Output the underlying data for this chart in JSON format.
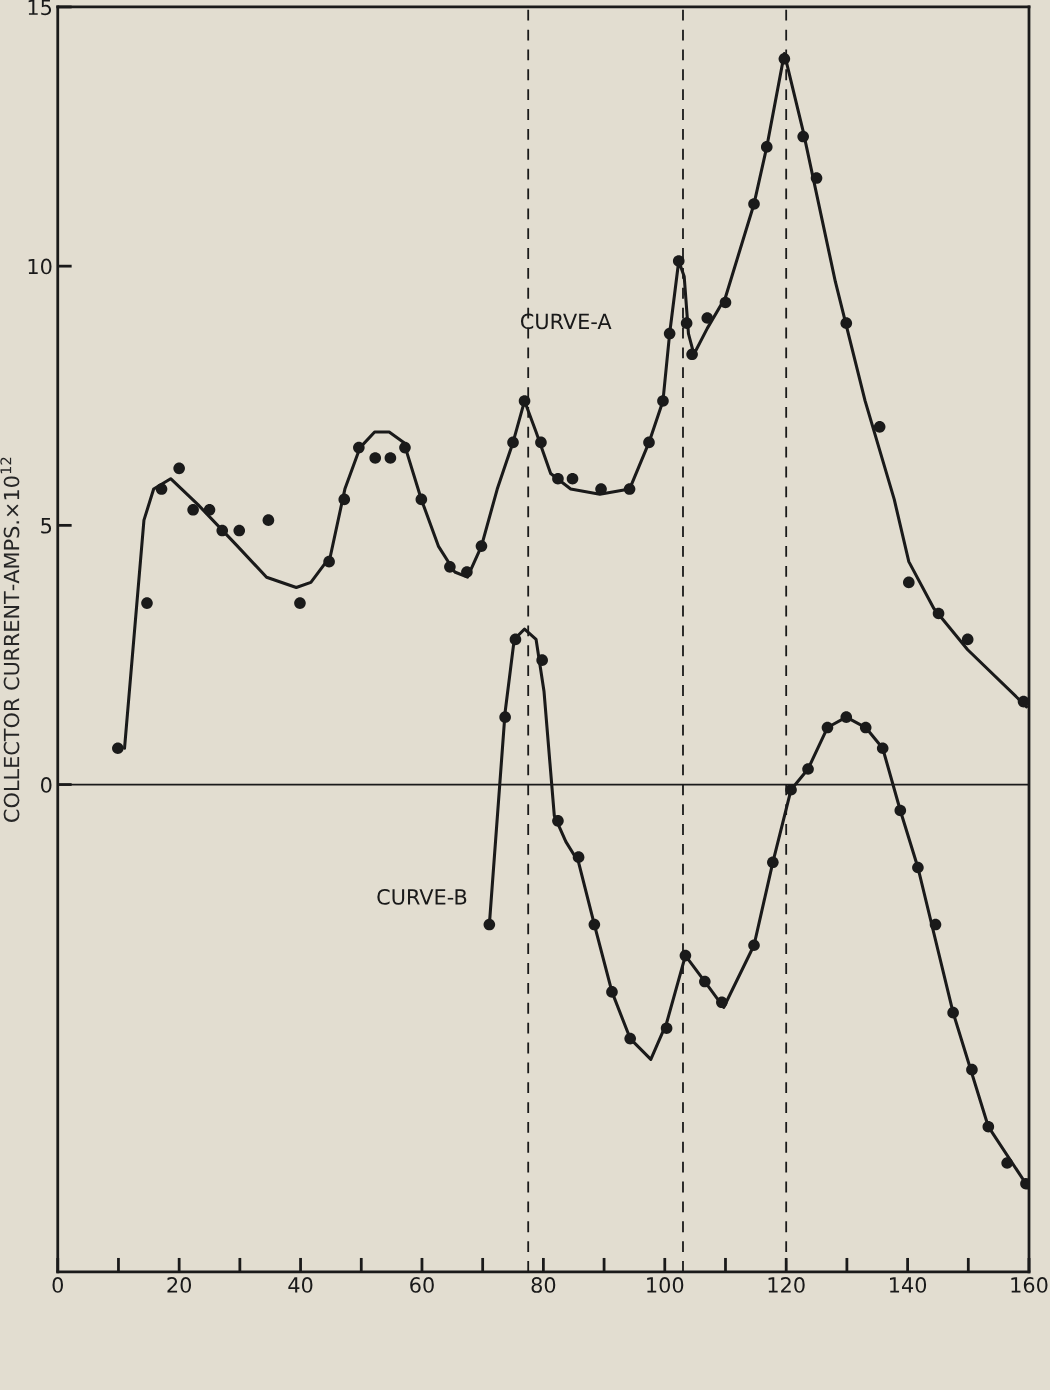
{
  "chart_data": {
    "type": "scatter",
    "ylabel": "COLLECTOR CURRENT-AMPS.×10$^{12}$",
    "xlim": [
      0,
      160
    ],
    "ylim": [
      -9.4,
      15
    ],
    "xticks": [
      0,
      {
        "value": 10,
        "label": null
      },
      20,
      {
        "value": 30,
        "label": null
      },
      40,
      {
        "value": 50,
        "label": null
      },
      60,
      {
        "value": 70,
        "label": null
      },
      80,
      {
        "value": 90,
        "label": null
      },
      100,
      {
        "value": 110,
        "label": null
      },
      120,
      {
        "value": 130,
        "label": null
      },
      140,
      {
        "value": 150,
        "label": null
      },
      160
    ],
    "yticks": [
      0,
      5,
      10,
      15
    ],
    "grid": false,
    "legend": false,
    "series": [
      {
        "type": "line",
        "name": "CURVE-A",
        "color": "#1a1a1a",
        "marker": "none",
        "line_style": "solid",
        "x": [
          11.0,
          14.2,
          15.8,
          18.6,
          23.1,
          29.6,
          34.4,
          39.3,
          41.7,
          44.9,
          47.3,
          49.8,
          52.2,
          54.6,
          57.0,
          59.9,
          62.7,
          65.4,
          67.5,
          69.8,
          72.4,
          75.0,
          76.9,
          78.8,
          81.2,
          84.5,
          89.3,
          94.2,
          97.4,
          99.7,
          100.8,
          102.3,
          103.2,
          103.9,
          104.8,
          107.0,
          110.0,
          114.7,
          116.8,
          119.7,
          122.8,
          128.1,
          133.0,
          137.8,
          140.2,
          144.3,
          149.9,
          159.6
        ],
        "values": [
          0.7,
          5.1,
          5.7,
          5.9,
          5.4,
          4.6,
          4.0,
          3.8,
          3.9,
          4.4,
          5.7,
          6.5,
          6.8,
          6.8,
          6.6,
          5.5,
          4.6,
          4.1,
          4.0,
          4.6,
          5.7,
          6.6,
          7.4,
          6.8,
          6.0,
          5.7,
          5.6,
          5.7,
          6.6,
          7.4,
          8.7,
          10.1,
          9.8,
          8.7,
          8.3,
          8.8,
          9.4,
          11.2,
          12.3,
          14.1,
          12.6,
          9.7,
          7.4,
          5.5,
          4.3,
          3.4,
          2.6,
          1.5
        ]
      },
      {
        "color": "#1a1a1a",
        "marker": "circle",
        "x": [
          9.9,
          14.7,
          17.1,
          20.0,
          22.3,
          25.0,
          27.1,
          29.9,
          34.7,
          39.9,
          44.7,
          47.2,
          49.6,
          52.3,
          54.8,
          57.2,
          59.9,
          64.6,
          67.4,
          69.8,
          75.0,
          76.9,
          79.6,
          82.4,
          84.8,
          89.5,
          94.2,
          97.4,
          99.7,
          100.8,
          102.3,
          103.6,
          104.5,
          107.0,
          110.0,
          114.7,
          116.8,
          119.7,
          122.8,
          125.0,
          129.9,
          135.4,
          140.2,
          145.1,
          149.9,
          159.1
        ],
        "values": [
          0.7,
          3.5,
          5.7,
          6.1,
          5.3,
          5.3,
          4.9,
          4.9,
          5.1,
          3.5,
          4.3,
          5.5,
          6.5,
          6.3,
          6.3,
          6.5,
          5.5,
          4.2,
          4.1,
          4.6,
          6.6,
          7.4,
          6.6,
          5.9,
          5.9,
          5.7,
          5.7,
          6.6,
          7.4,
          8.7,
          10.1,
          8.9,
          8.3,
          9.0,
          9.3,
          11.2,
          12.3,
          14.0,
          12.5,
          11.7,
          8.9,
          6.9,
          3.9,
          3.3,
          2.8,
          1.6
        ]
      },
      {
        "type": "line",
        "name": "CURVE-B",
        "color": "#1a1a1a",
        "marker": "none",
        "line_style": "solid",
        "x": [
          71.1,
          73.7,
          75.2,
          76.9,
          78.8,
          80.1,
          81.8,
          83.7,
          85.8,
          88.4,
          91.3,
          94.3,
          97.7,
          100.3,
          103.4,
          106.6,
          109.7,
          114.7,
          117.8,
          120.8,
          123.6,
          126.8,
          129.9,
          133.1,
          135.9,
          138.8,
          141.7,
          147.5,
          153.3,
          159.5
        ],
        "values": [
          -2.7,
          1.4,
          2.8,
          3.0,
          2.8,
          1.8,
          -0.6,
          -1.1,
          -1.5,
          -2.7,
          -4.0,
          -4.9,
          -5.3,
          -4.6,
          -3.3,
          -3.8,
          -4.3,
          -3.1,
          -1.5,
          -0.1,
          0.3,
          1.1,
          1.3,
          1.1,
          0.7,
          -0.5,
          -1.6,
          -4.4,
          -6.6,
          -7.7
        ]
      },
      {
        "color": "#1a1a1a",
        "marker": "circle",
        "x": [
          71.1,
          73.7,
          75.4,
          79.8,
          82.4,
          85.8,
          88.4,
          91.3,
          94.3,
          100.3,
          103.4,
          106.6,
          109.4,
          114.7,
          117.8,
          120.8,
          123.6,
          126.8,
          129.9,
          133.1,
          135.9,
          138.8,
          141.7,
          144.6,
          147.5,
          150.6,
          153.3,
          156.4,
          159.5
        ],
        "values": [
          -2.7,
          1.3,
          2.8,
          2.4,
          -0.7,
          -1.4,
          -2.7,
          -4.0,
          -4.9,
          -4.7,
          -3.3,
          -3.8,
          -4.2,
          -3.1,
          -1.5,
          -0.1,
          0.3,
          1.1,
          1.3,
          1.1,
          0.7,
          -0.5,
          -1.6,
          -2.7,
          -4.4,
          -5.5,
          -6.6,
          -7.3,
          -7.7
        ]
      }
    ],
    "ref_lines": [
      {
        "axis": "y",
        "value": 0,
        "label": null,
        "color": "#1a1a1a",
        "line_style": "solid"
      },
      {
        "axis": "x",
        "value": 77.5,
        "label": null,
        "color": "#1a1a1a",
        "line_style": "dashed"
      },
      {
        "axis": "x",
        "value": 103,
        "label": null,
        "color": "#1a1a1a",
        "line_style": "dashed"
      },
      {
        "axis": "x",
        "value": 120,
        "label": null,
        "color": "#1a1a1a",
        "line_style": "dashed"
      }
    ]
  }
}
